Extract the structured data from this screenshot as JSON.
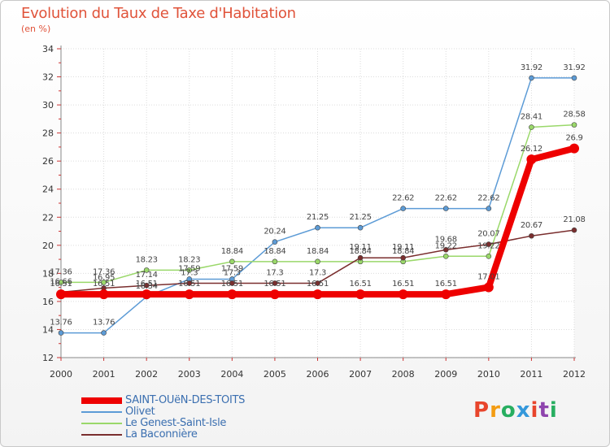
{
  "header": {
    "title": "Evolution du Taux de Taxe d'Habitation",
    "unit": "(en %)"
  },
  "logo": {
    "text": "Proxiti",
    "colors": [
      "#e8452c",
      "#f39c12",
      "#27ae60",
      "#3498db",
      "#e8452c",
      "#8e44ad",
      "#27ae60"
    ]
  },
  "chart_data": {
    "type": "line",
    "categories": [
      "2000",
      "2001",
      "2002",
      "2003",
      "2004",
      "2005",
      "2006",
      "2007",
      "2008",
      "2009",
      "2010",
      "2011",
      "2012"
    ],
    "ylim": [
      12,
      34
    ],
    "yticks": [
      12,
      14,
      16,
      18,
      20,
      22,
      24,
      26,
      28,
      30,
      32,
      34
    ],
    "grid": true,
    "series": [
      {
        "name": "SAINT-OUëN-DES-TOITS",
        "color": "#ee0000",
        "values": [
          16.51,
          16.51,
          16.51,
          16.51,
          16.51,
          16.51,
          16.51,
          16.51,
          16.51,
          16.51,
          17.01,
          26.12,
          26.9
        ],
        "labels": [
          "16.51",
          "16.51",
          "16.51",
          "16.51",
          "16.51",
          "16.51",
          "16.51",
          "16.51",
          "16.51",
          "16.51",
          "17.01",
          "26.12",
          "26.9"
        ]
      },
      {
        "name": "Olivet",
        "color": "#5c9bd6",
        "values": [
          13.76,
          13.76,
          16.34,
          17.59,
          17.59,
          20.24,
          21.25,
          21.25,
          22.62,
          22.62,
          22.62,
          31.92,
          31.92
        ],
        "labels": [
          "13.76",
          "13.76",
          "16.34",
          "17.59",
          "17.59",
          "20.24",
          "21.25",
          "21.25",
          "22.62",
          "22.62",
          "22.62",
          "31.92",
          "31.92"
        ]
      },
      {
        "name": "Le Genest-Saint-Isle",
        "color": "#9ad86a",
        "values": [
          17.36,
          17.36,
          18.23,
          18.23,
          18.84,
          18.84,
          18.84,
          18.84,
          18.84,
          19.22,
          19.22,
          28.41,
          28.58
        ],
        "labels": [
          "17.36",
          "17.36",
          "18.23",
          "18.23",
          "18.84",
          "18.84",
          "18.84",
          "18.84",
          "18.84",
          "19.22",
          "19.22",
          "28.41",
          "28.58"
        ]
      },
      {
        "name": "La Baconnière",
        "color": "#7a2e2e",
        "values": [
          16.66,
          16.95,
          17.14,
          17.3,
          17.3,
          17.3,
          17.3,
          19.11,
          19.11,
          19.68,
          20.07,
          20.67,
          21.08
        ],
        "labels": [
          "16.66",
          "16.95",
          "17.14",
          "17.3",
          "17.3",
          "17.3",
          "17.3",
          "19.11",
          "19.11",
          "19.68",
          "20.07",
          "20.67",
          "21.08"
        ]
      }
    ]
  }
}
